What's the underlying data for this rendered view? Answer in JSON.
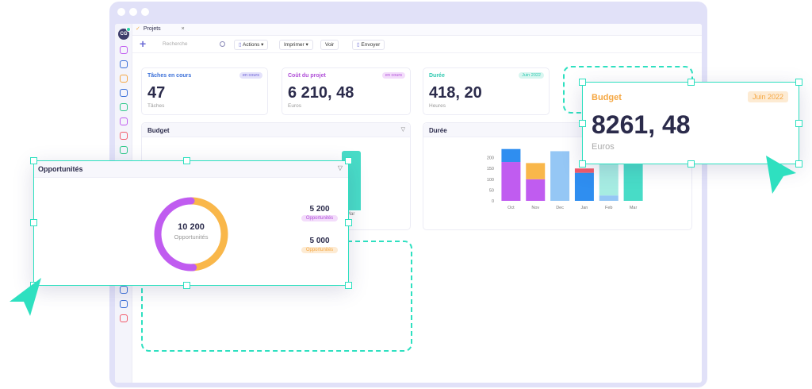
{
  "app": {
    "avatar_initials": "CG",
    "tab_label": "Projets",
    "tab_close": "×",
    "tab_check": "✓",
    "new_button": "+",
    "search_placeholder": "Recherche",
    "toolbar": {
      "actions": "Actions",
      "imprimer": "Imprimer",
      "voir": "Voir",
      "envoyer": "Envoyer"
    }
  },
  "kpis": [
    {
      "label": "Tâches en cours",
      "badge": "en cours",
      "value": "47",
      "unit": "Tâches",
      "color": "#3a6fd8",
      "badge_bg": "#e4e2fb",
      "badge_color": "#6b5fd6"
    },
    {
      "label": "Coût du projet",
      "badge": "en cours",
      "value": "6 210, 48",
      "unit": "Euros",
      "color": "#b04fd8",
      "badge_bg": "#f3dcfb",
      "badge_color": "#b04fd8"
    },
    {
      "label": "Durée",
      "badge": "Juin 2022",
      "value": "418, 20",
      "unit": "Heures",
      "color": "#2ec9b0",
      "badge_bg": "#d8f6f0",
      "badge_color": "#2ec9b0"
    }
  ],
  "panels": {
    "budget_title": "Budget",
    "budget_tick": "Mar",
    "duree_title": "Durée"
  },
  "duree_chart": {
    "chart_data": {
      "type": "bar",
      "stacked": true,
      "categories": [
        "Oct",
        "Nov",
        "Dec",
        "Jan",
        "Feb",
        "Mar"
      ],
      "ylim": [
        0,
        250
      ],
      "yticks": [
        0,
        50,
        100,
        150,
        200
      ],
      "series": [
        {
          "color": "#c05cf0",
          "values": [
            180,
            100,
            0,
            0,
            0,
            0
          ]
        },
        {
          "color": "#2f8ef0",
          "values": [
            60,
            0,
            0,
            130,
            0,
            0
          ]
        },
        {
          "color": "#f9b74a",
          "values": [
            0,
            75,
            0,
            0,
            0,
            0
          ]
        },
        {
          "color": "#95c7f5",
          "values": [
            0,
            0,
            230,
            0,
            25,
            0
          ]
        },
        {
          "color": "#f25a6a",
          "values": [
            0,
            0,
            0,
            20,
            0,
            0
          ]
        },
        {
          "color": "#a6ece2",
          "values": [
            0,
            0,
            0,
            0,
            165,
            0
          ]
        },
        {
          "color": "#48dcc7",
          "values": [
            0,
            0,
            0,
            0,
            0,
            200
          ]
        }
      ]
    }
  },
  "budget_popup": {
    "title": "Budget",
    "badge": "Juin 2022",
    "value": "8261, 48",
    "unit": "Euros",
    "color": "#f5a742"
  },
  "opportunites": {
    "title": "Opportunités",
    "center_value": "10 200",
    "center_label": "Opportunités",
    "items": [
      {
        "value": "5 200",
        "label": "Opportunités",
        "badge_bg": "#f3dcfb",
        "badge_color": "#b04fd8"
      },
      {
        "value": "5 000",
        "label": "Opportunités",
        "badge_bg": "#fdebd3",
        "badge_color": "#f5a742"
      }
    ],
    "donut": {
      "chart_data": {
        "type": "pie",
        "values": [
          5000,
          5200
        ],
        "colors": [
          "#f9b74a",
          "#c05cf0"
        ]
      }
    }
  },
  "accent": "#2ee0c0"
}
